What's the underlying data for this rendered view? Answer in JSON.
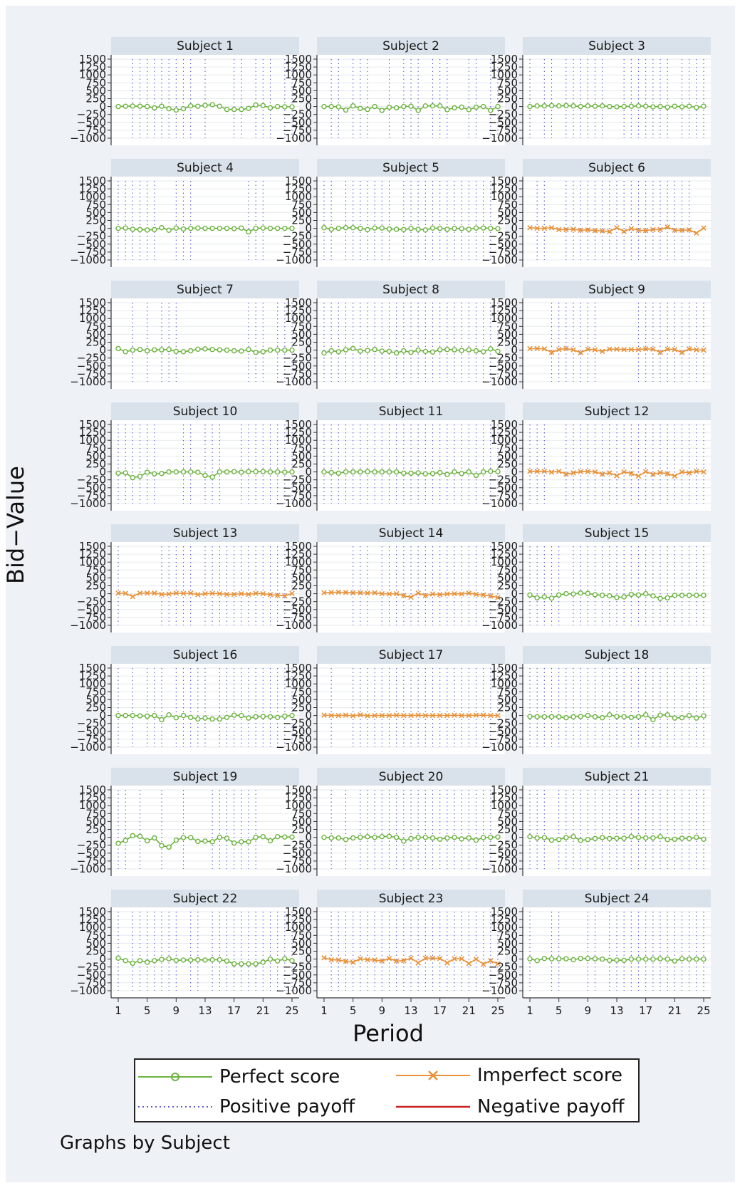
{
  "chart_data": {
    "type": "line",
    "layout": "small multiples",
    "xlabel": "Period",
    "ylabel": "Bid−Value",
    "note": "Graphs by Subject",
    "xlim": [
      1,
      25
    ],
    "x_ticks": [
      "1",
      "5",
      "9",
      "13",
      "17",
      "21",
      "25"
    ],
    "ylim": [
      -1000,
      1500
    ],
    "y_ticks": [
      "1500",
      "1250",
      "1000",
      "750",
      "500",
      "250",
      "0",
      "−250",
      "−500",
      "−750",
      "−1000"
    ],
    "grid": true,
    "legend": [
      {
        "label": "Perfect score",
        "kind": "perfect"
      },
      {
        "label": "Imperfect score",
        "kind": "imperfect"
      },
      {
        "label": "Positive payoff",
        "kind": "positive"
      },
      {
        "label": "Negative payoff",
        "kind": "negative"
      }
    ],
    "colors": {
      "perfect": "#6cb33f",
      "imperfect": "#e8923a",
      "positive": "#5a5ad8",
      "negative": "#cc1f1f"
    },
    "panels": [
      {
        "title": "Subject 1",
        "score": "perfect",
        "values": [
          0,
          10,
          15,
          10,
          0,
          -40,
          10,
          -70,
          -110,
          -70,
          20,
          10,
          40,
          60,
          10,
          -90,
          -90,
          -90,
          -60,
          50,
          30,
          -40,
          0,
          -10,
          -10
        ],
        "positive_payoff_periods": [
          3,
          4,
          5,
          6,
          7,
          8,
          9,
          10,
          11,
          13,
          17,
          18,
          20,
          21,
          22,
          24,
          25
        ]
      },
      {
        "title": "Subject 2",
        "score": "perfect",
        "values": [
          0,
          0,
          -10,
          -110,
          20,
          -60,
          -90,
          0,
          -120,
          -20,
          -40,
          0,
          10,
          -120,
          20,
          20,
          20,
          -100,
          -40,
          -20,
          -100,
          -20,
          0,
          -120,
          0
        ],
        "positive_payoff_periods": [
          2,
          3,
          5,
          6,
          7,
          10,
          12,
          13,
          14,
          16,
          17,
          18,
          21,
          22,
          24,
          25
        ]
      },
      {
        "title": "Subject 3",
        "score": "perfect",
        "values": [
          0,
          20,
          20,
          30,
          20,
          30,
          20,
          0,
          20,
          10,
          20,
          0,
          -10,
          0,
          10,
          20,
          10,
          -10,
          0,
          -20,
          10,
          -10,
          10,
          -30,
          10
        ],
        "positive_payoff_periods": [
          1,
          3,
          4,
          6,
          7,
          8,
          9,
          10,
          11,
          14,
          15,
          16,
          17,
          18,
          19,
          20,
          22,
          23,
          24,
          25
        ]
      },
      {
        "title": "Subject 4",
        "score": "perfect",
        "values": [
          0,
          10,
          -30,
          -40,
          -50,
          -40,
          20,
          -60,
          10,
          -20,
          0,
          10,
          0,
          0,
          0,
          0,
          -10,
          10,
          -110,
          0,
          10,
          0,
          0,
          0,
          0
        ],
        "positive_payoff_periods": [
          1,
          2,
          3,
          4,
          5,
          6,
          9,
          10,
          11,
          19,
          20,
          21
        ]
      },
      {
        "title": "Subject 5",
        "score": "perfect",
        "values": [
          20,
          -30,
          0,
          20,
          20,
          0,
          -40,
          10,
          10,
          -20,
          -30,
          -40,
          0,
          -30,
          -50,
          10,
          0,
          -30,
          0,
          -10,
          -30,
          10,
          10,
          0,
          -10
        ],
        "positive_payoff_periods": [
          1,
          2,
          4,
          5,
          6,
          7,
          8,
          9,
          10,
          12,
          13,
          14,
          15,
          16,
          17,
          18,
          19,
          20,
          21,
          22,
          23,
          24
        ]
      },
      {
        "title": "Subject 6",
        "score": "imperfect",
        "values": [
          20,
          0,
          0,
          20,
          -40,
          -40,
          -30,
          -60,
          -50,
          -70,
          -80,
          -100,
          20,
          -100,
          -10,
          -60,
          -70,
          -40,
          -40,
          40,
          -60,
          -60,
          -50,
          -150,
          10
        ],
        "positive_payoff_periods": [
          2,
          3,
          6,
          7,
          8,
          9,
          10,
          11,
          12,
          13,
          14,
          15,
          16,
          17,
          18,
          19,
          20,
          21,
          22,
          23
        ]
      },
      {
        "title": "Subject 7",
        "score": "perfect",
        "values": [
          50,
          -50,
          0,
          20,
          -20,
          10,
          10,
          20,
          -40,
          -50,
          -20,
          30,
          40,
          20,
          10,
          0,
          -20,
          -30,
          20,
          -70,
          -50,
          0,
          0,
          0,
          0
        ],
        "positive_payoff_periods": [
          3,
          5,
          7,
          8,
          9,
          19,
          20,
          21,
          23,
          24,
          25
        ]
      },
      {
        "title": "Subject 8",
        "score": "perfect",
        "values": [
          -90,
          -20,
          -50,
          10,
          50,
          -30,
          -10,
          20,
          -30,
          -40,
          -90,
          -20,
          -70,
          0,
          -40,
          -60,
          10,
          20,
          10,
          -10,
          10,
          -20,
          -50,
          40,
          -40
        ],
        "positive_payoff_periods": [
          1,
          2,
          3,
          4,
          5,
          6,
          7,
          8,
          9,
          10,
          11,
          12,
          13,
          14,
          15,
          16,
          17,
          18,
          19,
          20,
          21,
          22,
          23,
          24,
          25
        ]
      },
      {
        "title": "Subject 9",
        "score": "imperfect",
        "values": [
          50,
          50,
          40,
          -70,
          20,
          50,
          10,
          -80,
          30,
          10,
          -40,
          30,
          30,
          20,
          20,
          20,
          40,
          30,
          -70,
          30,
          20,
          -70,
          40,
          10,
          0
        ],
        "positive_payoff_periods": [
          4,
          5,
          6,
          7,
          8,
          9,
          10,
          16,
          17,
          18,
          19,
          20,
          21,
          22,
          23,
          24,
          25
        ]
      },
      {
        "title": "Subject 10",
        "score": "perfect",
        "values": [
          -40,
          -30,
          -180,
          -140,
          -10,
          -60,
          -50,
          0,
          0,
          0,
          0,
          -10,
          -110,
          -160,
          0,
          0,
          10,
          -10,
          10,
          10,
          10,
          0,
          0,
          -10,
          0
        ],
        "positive_payoff_periods": [
          1,
          2,
          3,
          4,
          5,
          6,
          10,
          11,
          13,
          14,
          15,
          18,
          19,
          20,
          21,
          22,
          23,
          24,
          25
        ]
      },
      {
        "title": "Subject 11",
        "score": "perfect",
        "values": [
          0,
          -20,
          -40,
          0,
          0,
          0,
          10,
          0,
          0,
          0,
          0,
          -40,
          -40,
          -30,
          -60,
          -50,
          -20,
          -80,
          0,
          -50,
          0,
          -110,
          0,
          20,
          10
        ],
        "positive_payoff_periods": [
          1,
          2,
          3,
          4,
          5,
          6,
          7,
          8,
          9,
          10,
          11,
          12,
          13,
          14,
          15,
          16,
          17,
          18,
          19,
          20,
          21,
          22,
          23,
          24,
          25
        ]
      },
      {
        "title": "Subject 12",
        "score": "imperfect",
        "values": [
          20,
          20,
          20,
          -10,
          20,
          -70,
          -30,
          10,
          10,
          0,
          -70,
          -30,
          -120,
          0,
          -50,
          -130,
          10,
          -80,
          -20,
          -60,
          -130,
          0,
          -30,
          20,
          0
        ],
        "positive_payoff_periods": [
          1,
          2,
          3,
          6,
          7,
          8,
          9,
          10,
          11,
          12,
          13,
          14,
          15,
          16,
          17,
          18,
          19,
          20,
          21,
          22,
          23,
          24,
          25
        ]
      },
      {
        "title": "Subject 13",
        "score": "imperfect",
        "values": [
          20,
          10,
          -90,
          20,
          20,
          20,
          -20,
          -10,
          20,
          10,
          20,
          -30,
          0,
          10,
          0,
          -20,
          -20,
          0,
          -20,
          10,
          0,
          -30,
          -50,
          -70,
          10
        ],
        "positive_payoff_periods": [
          1,
          7,
          8,
          9,
          10,
          11,
          13,
          14,
          15,
          16,
          17,
          18,
          19,
          20,
          21,
          22,
          23,
          24,
          25
        ]
      },
      {
        "title": "Subject 14",
        "score": "imperfect",
        "values": [
          30,
          40,
          50,
          40,
          30,
          30,
          20,
          30,
          0,
          -10,
          0,
          -60,
          -110,
          20,
          -60,
          -10,
          -30,
          -10,
          0,
          -10,
          20,
          -20,
          -40,
          -70,
          -120
        ],
        "positive_payoff_periods": [
          5,
          6,
          7,
          9,
          10,
          11,
          12,
          13,
          14,
          15,
          16,
          17,
          18,
          19,
          20,
          21,
          22,
          23,
          24,
          25
        ]
      },
      {
        "title": "Subject 15",
        "score": "perfect",
        "values": [
          -40,
          -130,
          -100,
          -140,
          -40,
          0,
          -10,
          20,
          10,
          -30,
          -50,
          -70,
          -120,
          -100,
          -20,
          -40,
          0,
          -70,
          -150,
          -130,
          -50,
          -50,
          -50,
          -50,
          -50
        ],
        "positive_payoff_periods": [
          1,
          2,
          3,
          4,
          5,
          7,
          8,
          9,
          10,
          11,
          12,
          13,
          14,
          15,
          16,
          17,
          18,
          19,
          20,
          21,
          22,
          23,
          24,
          25
        ]
      },
      {
        "title": "Subject 16",
        "score": "perfect",
        "values": [
          0,
          0,
          0,
          -10,
          -20,
          0,
          -130,
          20,
          -70,
          0,
          -60,
          -110,
          -80,
          -110,
          -110,
          -60,
          10,
          0,
          -80,
          -40,
          -30,
          -40,
          -60,
          -20,
          0
        ],
        "positive_payoff_periods": [
          1,
          3,
          5,
          6,
          7,
          9,
          10,
          11,
          12,
          13,
          15,
          16,
          17,
          18,
          19,
          20,
          21,
          22,
          23,
          24,
          25
        ]
      },
      {
        "title": "Subject 17",
        "score": "imperfect",
        "values": [
          10,
          0,
          0,
          10,
          -10,
          20,
          -10,
          0,
          0,
          0,
          10,
          0,
          0,
          10,
          0,
          0,
          0,
          0,
          10,
          0,
          0,
          10,
          10,
          0,
          0
        ],
        "positive_payoff_periods": [
          2,
          5,
          6,
          7,
          8,
          9,
          10,
          11,
          12,
          13,
          14,
          15,
          16,
          17,
          18,
          19,
          20,
          21,
          22,
          23,
          24,
          25
        ]
      },
      {
        "title": "Subject 18",
        "score": "perfect",
        "values": [
          -30,
          -40,
          -40,
          -40,
          -40,
          -70,
          -40,
          -30,
          0,
          -40,
          -70,
          20,
          -30,
          -40,
          -60,
          -40,
          20,
          -130,
          10,
          20,
          -80,
          -70,
          0,
          -80,
          -10
        ],
        "positive_payoff_periods": [
          1,
          2,
          3,
          4,
          5,
          6,
          7,
          8,
          9,
          10,
          11,
          12,
          13,
          14,
          15,
          16,
          17,
          18,
          19,
          20,
          21,
          22,
          23,
          24,
          25
        ]
      },
      {
        "title": "Subject 19",
        "score": "perfect",
        "values": [
          -190,
          -100,
          50,
          30,
          -110,
          -20,
          -260,
          -310,
          -90,
          -10,
          -10,
          -130,
          -120,
          -140,
          0,
          -30,
          -180,
          -140,
          -140,
          0,
          20,
          -110,
          20,
          10,
          10
        ],
        "positive_payoff_periods": [
          1,
          2,
          4,
          7,
          10,
          14,
          15,
          16,
          17,
          18,
          19,
          20
        ]
      },
      {
        "title": "Subject 20",
        "score": "perfect",
        "values": [
          0,
          -20,
          -20,
          -70,
          -20,
          0,
          20,
          0,
          20,
          30,
          0,
          -120,
          -40,
          0,
          0,
          -20,
          -60,
          -20,
          0,
          -50,
          -20,
          -90,
          -10,
          0,
          10
        ],
        "positive_payoff_periods": [
          2,
          4,
          6,
          7,
          8,
          9,
          10,
          11,
          12,
          13,
          14,
          15,
          16,
          17,
          18,
          19,
          20,
          21,
          22,
          23,
          24
        ]
      },
      {
        "title": "Subject 21",
        "score": "perfect",
        "values": [
          20,
          -20,
          -10,
          -90,
          -70,
          -10,
          20,
          -100,
          -70,
          -40,
          -10,
          -40,
          -30,
          -30,
          20,
          0,
          -20,
          -20,
          20,
          -70,
          -60,
          -30,
          -40,
          0,
          -60
        ],
        "positive_payoff_periods": [
          1,
          2,
          3,
          5,
          6,
          7,
          8,
          9,
          10,
          11,
          12,
          13,
          14,
          15,
          16,
          17,
          18,
          19,
          20,
          21,
          22,
          23,
          24,
          25
        ]
      },
      {
        "title": "Subject 22",
        "score": "perfect",
        "values": [
          30,
          -50,
          -130,
          -50,
          -100,
          -50,
          -10,
          10,
          -40,
          -30,
          -30,
          -20,
          -30,
          -20,
          -20,
          -60,
          -150,
          -150,
          -150,
          -150,
          -100,
          0,
          -60,
          10,
          -50
        ],
        "positive_payoff_periods": [
          1,
          3,
          4,
          5,
          6,
          7,
          8,
          9,
          11,
          12,
          14,
          15,
          16,
          17,
          18,
          19,
          20,
          21,
          22,
          23,
          24,
          25
        ]
      },
      {
        "title": "Subject 23",
        "score": "imperfect",
        "values": [
          40,
          -20,
          -30,
          -70,
          -100,
          10,
          -20,
          -30,
          -60,
          20,
          -60,
          -50,
          30,
          -120,
          30,
          30,
          20,
          -120,
          10,
          10,
          -140,
          0,
          -160,
          -50,
          -150
        ],
        "positive_payoff_periods": [
          2,
          3,
          4,
          5,
          6,
          7,
          8,
          9,
          10,
          11,
          12,
          13,
          14,
          15,
          16,
          17,
          18,
          19,
          20,
          21,
          22,
          23,
          24,
          25
        ]
      },
      {
        "title": "Subject 24",
        "score": "perfect",
        "values": [
          10,
          -50,
          20,
          10,
          10,
          10,
          -20,
          20,
          20,
          10,
          0,
          -40,
          -30,
          -40,
          0,
          0,
          0,
          0,
          10,
          0,
          -60,
          10,
          0,
          0,
          0
        ],
        "positive_payoff_periods": [
          1,
          4,
          5,
          9,
          10,
          12,
          13,
          14,
          15,
          16,
          17,
          18,
          19,
          20,
          21,
          22,
          23,
          24,
          25
        ]
      }
    ]
  }
}
